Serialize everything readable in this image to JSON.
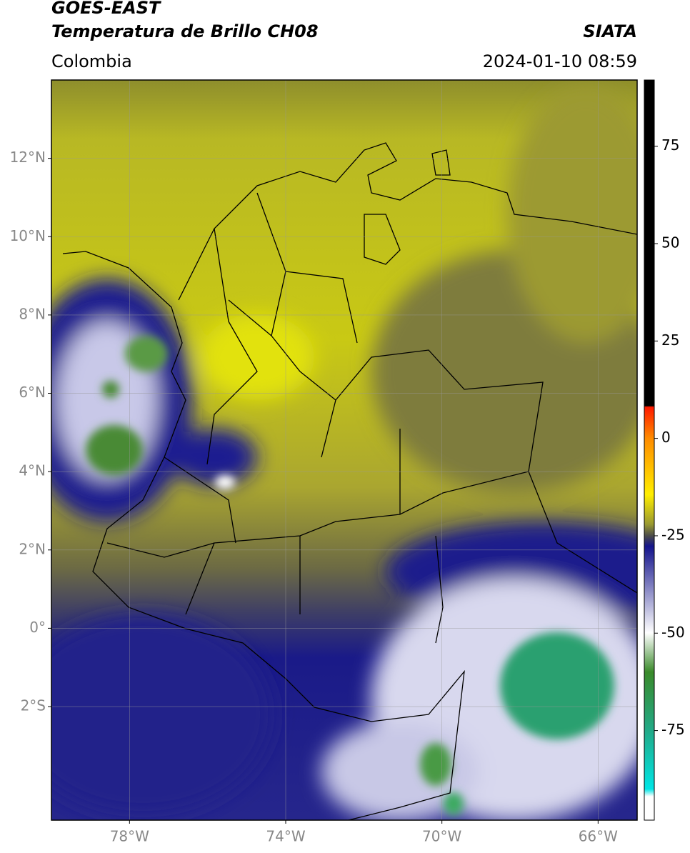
{
  "header": {
    "title": "GOES-EAST",
    "subtitle": "Temperatura de Brillo CH08",
    "region": "Colombia",
    "source": "SIATA",
    "datetime": "2024-01-10 08:59"
  },
  "map": {
    "xlim": [
      -80,
      -65
    ],
    "ylim": [
      -4.9,
      14
    ],
    "xticks": [
      {
        "value": -78,
        "label": "78°W"
      },
      {
        "value": -74,
        "label": "74°W"
      },
      {
        "value": -70,
        "label": "70°W"
      },
      {
        "value": -66,
        "label": "66°W"
      }
    ],
    "yticks": [
      {
        "value": 12,
        "label": "12°N"
      },
      {
        "value": 10,
        "label": "10°N"
      },
      {
        "value": 8,
        "label": "8°N"
      },
      {
        "value": 6,
        "label": "6°N"
      },
      {
        "value": 4,
        "label": "4°N"
      },
      {
        "value": 2,
        "label": "2°N"
      },
      {
        "value": 0,
        "label": "0°"
      },
      {
        "value": -2,
        "label": "2°S"
      }
    ],
    "grid": true
  },
  "colorbar": {
    "lim": [
      -98,
      92
    ],
    "ticks": [
      75,
      50,
      25,
      0,
      -25,
      -50,
      -75
    ]
  }
}
